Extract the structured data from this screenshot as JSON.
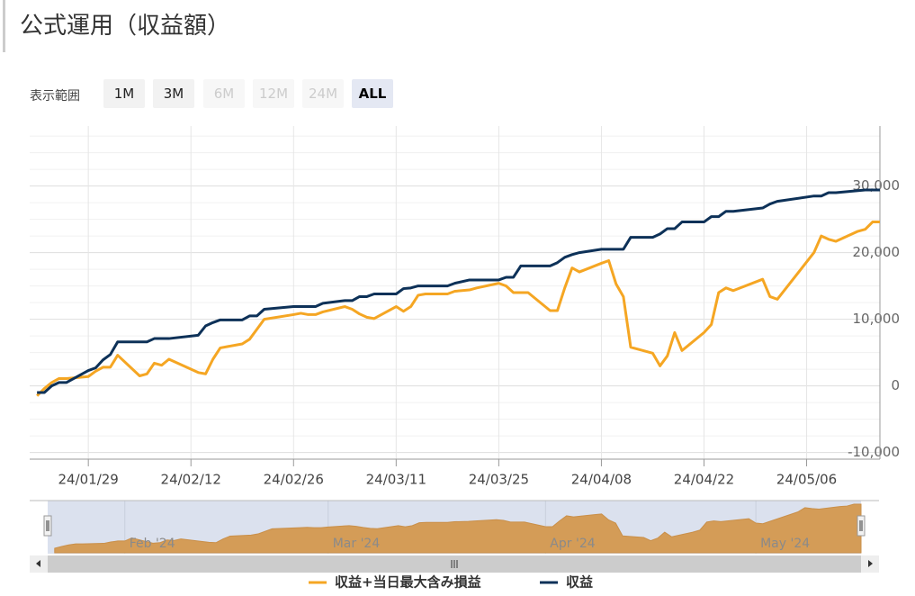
{
  "header": {
    "title": "公式運用（収益額）"
  },
  "range_selector": {
    "label": "表示範囲",
    "buttons": [
      "1M",
      "3M",
      "6M",
      "12M",
      "24M",
      "ALL"
    ]
  },
  "chart_data": {
    "type": "line",
    "x": [
      "24/01/22",
      "24/01/23",
      "24/01/24",
      "24/01/25",
      "24/01/26",
      "24/01/29",
      "24/01/30",
      "24/01/31",
      "24/02/01",
      "24/02/02",
      "24/02/05",
      "24/02/06",
      "24/02/07",
      "24/02/08",
      "24/02/09",
      "24/02/13",
      "24/02/14",
      "24/02/15",
      "24/02/16",
      "24/02/19",
      "24/02/20",
      "24/02/21",
      "24/02/22",
      "24/02/26",
      "24/02/27",
      "24/02/28",
      "24/02/29",
      "24/03/01",
      "24/03/04",
      "24/03/05",
      "24/03/06",
      "24/03/07",
      "24/03/08",
      "24/03/11",
      "24/03/12",
      "24/03/13",
      "24/03/14",
      "24/03/15",
      "24/03/18",
      "24/03/19",
      "24/03/21",
      "24/03/22",
      "24/03/25",
      "24/03/26",
      "24/03/27",
      "24/03/28",
      "24/03/29",
      "24/04/01",
      "24/04/02",
      "24/04/03",
      "24/04/04",
      "24/04/05",
      "24/04/08",
      "24/04/09",
      "24/04/10",
      "24/04/11",
      "24/04/12",
      "24/04/15",
      "24/04/16",
      "24/04/17",
      "24/04/18",
      "24/04/19",
      "24/04/22",
      "24/04/23",
      "24/04/24",
      "24/04/25",
      "24/04/26",
      "24/04/30",
      "24/05/01",
      "24/05/02",
      "24/05/07",
      "24/05/08",
      "24/05/09",
      "24/05/10",
      "24/05/13",
      "24/05/14",
      "24/05/15",
      "24/05/16"
    ],
    "series": [
      {
        "name": "収益+当日最大含み損益",
        "color": "#f5a623",
        "values": [
          -1500,
          -400,
          500,
          1100,
          1100,
          1400,
          2200,
          2800,
          2800,
          4600,
          1500,
          1800,
          3400,
          3100,
          4000,
          2000,
          1800,
          4000,
          5700,
          6300,
          7000,
          8500,
          10000,
          10700,
          10900,
          10700,
          10700,
          11100,
          11900,
          11500,
          10800,
          10300,
          10100,
          11900,
          11200,
          11900,
          13600,
          13800,
          13800,
          14200,
          14400,
          14700,
          15400,
          15000,
          14000,
          14000,
          14000,
          11300,
          11300,
          14700,
          17700,
          17100,
          18400,
          18800,
          15300,
          13400,
          5800,
          4900,
          3000,
          4500,
          8000,
          5300,
          8000,
          9200,
          14000,
          14700,
          14300,
          16000,
          13400,
          13000,
          20000,
          22500,
          22000,
          21700,
          23200,
          23500,
          24600,
          24600
        ]
      },
      {
        "name": "収益",
        "color": "#0d3158",
        "values": [
          -1000,
          -1000,
          0,
          500,
          500,
          2300,
          2700,
          3900,
          4700,
          6600,
          6600,
          6600,
          7100,
          7100,
          7100,
          7600,
          9000,
          9500,
          9900,
          9900,
          10500,
          10500,
          11500,
          11900,
          11900,
          11900,
          11900,
          12400,
          12800,
          12800,
          13400,
          13400,
          13800,
          13800,
          14600,
          14700,
          15000,
          15000,
          15000,
          15400,
          15900,
          15900,
          15900,
          16300,
          16300,
          18000,
          18000,
          18000,
          18500,
          19300,
          19700,
          20000,
          20500,
          20500,
          20500,
          20500,
          22300,
          22300,
          22800,
          23600,
          23600,
          24600,
          24600,
          25400,
          25400,
          26200,
          26200,
          26700,
          27300,
          27700,
          28500,
          28500,
          29000,
          29000,
          29300,
          29400,
          29400,
          29400
        ]
      }
    ],
    "xlim": [
      "24/01/21",
      "24/05/16"
    ],
    "xticks": [
      "24/01/29",
      "24/02/12",
      "24/02/26",
      "24/03/11",
      "24/03/25",
      "24/04/08",
      "24/04/22",
      "24/05/06"
    ],
    "ylim": [
      -11000,
      39000
    ],
    "yticks": [
      {
        "value": -10000,
        "label": "-10,000"
      },
      0,
      {
        "value": 10000,
        "label": "10,000"
      },
      {
        "value": 20000,
        "label": "20,000"
      },
      {
        "value": 30000,
        "label": "30,000"
      }
    ],
    "grid": true,
    "navigator": {
      "ticks": [
        {
          "value": "24/02/01",
          "label": "Feb '24"
        },
        {
          "value": "24/03/01",
          "label": "Mar '24"
        },
        {
          "value": "24/04/01",
          "label": "Apr '24"
        },
        {
          "value": "24/05/01",
          "label": "May '24"
        }
      ]
    }
  }
}
